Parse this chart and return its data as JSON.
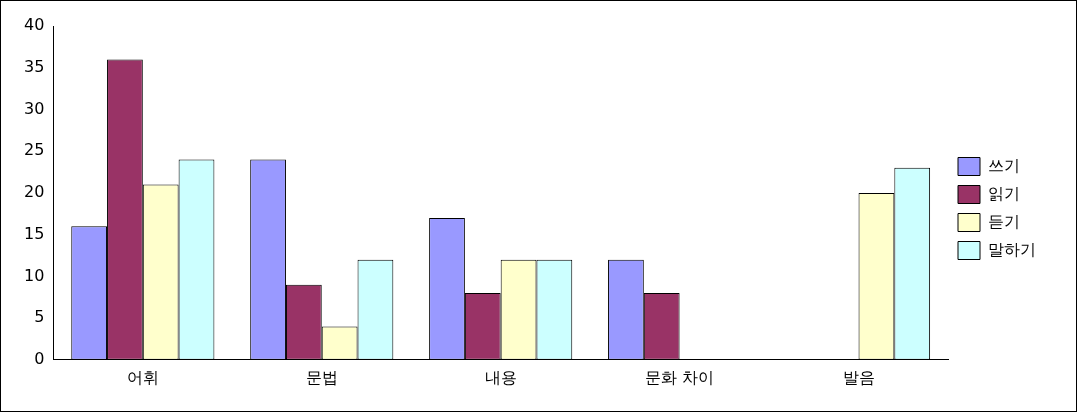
{
  "chart_data": {
    "type": "bar",
    "categories": [
      "어휘",
      "문법",
      "내용",
      "문화 차이",
      "발음"
    ],
    "series": [
      {
        "name": "쓰기",
        "color": "#9999ff",
        "values": [
          16,
          24,
          17,
          12,
          0
        ]
      },
      {
        "name": "읽기",
        "color": "#993366",
        "values": [
          36,
          9,
          8,
          8,
          0
        ]
      },
      {
        "name": "듣기",
        "color": "#ffffcc",
        "values": [
          21,
          4,
          12,
          0,
          20
        ]
      },
      {
        "name": "말하기",
        "color": "#ccffff",
        "values": [
          24,
          12,
          12,
          0,
          23
        ]
      }
    ],
    "ylim": [
      0,
      40
    ],
    "yticks": [
      0,
      5,
      10,
      15,
      20,
      25,
      30,
      35,
      40
    ],
    "grid": false,
    "legend": "right"
  }
}
